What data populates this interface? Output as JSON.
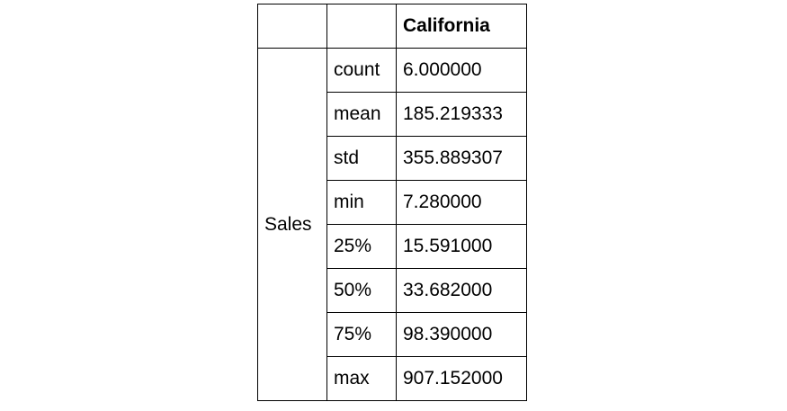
{
  "table": {
    "header": [
      "",
      "",
      "California"
    ],
    "group_label": "Sales",
    "rows": [
      {
        "stat": "count",
        "value": "6.000000"
      },
      {
        "stat": "mean",
        "value": "185.219333"
      },
      {
        "stat": "std",
        "value": "355.889307"
      },
      {
        "stat": "min",
        "value": "7.280000"
      },
      {
        "stat": "25%",
        "value": "15.591000"
      },
      {
        "stat": "50%",
        "value": "33.682000"
      },
      {
        "stat": "75%",
        "value": "98.390000"
      },
      {
        "stat": "max",
        "value": "907.152000"
      }
    ]
  }
}
